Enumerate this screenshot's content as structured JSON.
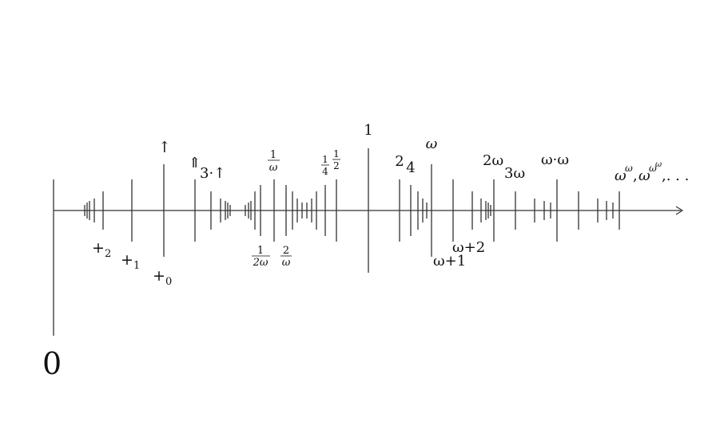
{
  "labels": {
    "zero": "0",
    "plus2": "+",
    "plus2_sub": "2",
    "plus1": "+",
    "plus1_sub": "1",
    "plus0": "+",
    "plus0_sub": "0",
    "up_arrow": "↑",
    "double_up_arrow": "⇑",
    "three_up": "3·↑",
    "one": "1",
    "two": "2",
    "four": "4",
    "omega": "ω",
    "omega_plus_1": "ω+1",
    "omega_plus_2": "ω+2",
    "two_omega": "2ω",
    "three_omega": "3ω",
    "omega_dot_omega": "ω·ω",
    "tower_base1": "ω",
    "tower_exp1": "ω",
    "tower_sep1": ",",
    "tower_base2": "ω",
    "tower_exp2": "ω",
    "tower_exp3": "ω",
    "tower_dots": ",. . .",
    "frac_1_omega": {
      "num": "1",
      "den": "ω"
    },
    "frac_1_2omega": {
      "num": "1",
      "den": "2ω"
    },
    "frac_2_omega": {
      "num": "2",
      "den": "ω"
    },
    "frac_1_4": {
      "num": "1",
      "den": "4"
    },
    "frac_1_2": {
      "num": "1",
      "den": "2"
    }
  }
}
